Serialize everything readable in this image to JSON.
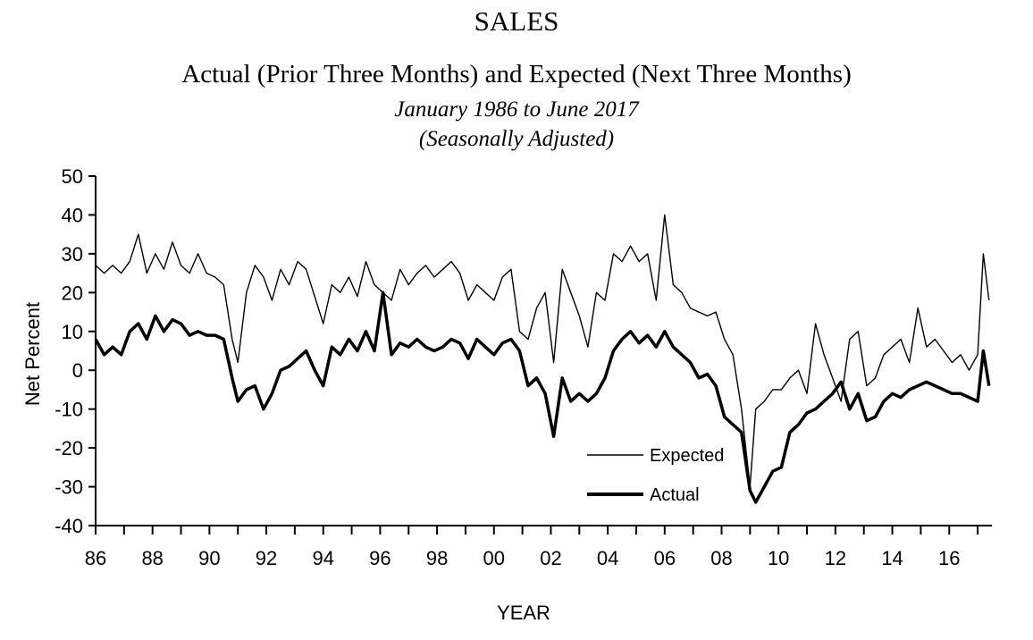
{
  "chart_data": {
    "type": "line",
    "title": "SALES",
    "subtitle": "Actual (Prior Three Months) and Expected (Next Three Months)",
    "date_range": "January 1986 to June 2017",
    "adjustment": "(Seasonally Adjusted)",
    "xlabel": "YEAR",
    "ylabel": "Net Percent",
    "xlim": [
      1986,
      2017.5
    ],
    "ylim": [
      -40,
      50
    ],
    "y_ticks": [
      "50",
      "40",
      "30",
      "20",
      "10",
      "0",
      "-10",
      "-20",
      "-30",
      "-40"
    ],
    "x_ticks": [
      "86",
      "88",
      "90",
      "92",
      "94",
      "96",
      "98",
      "00",
      "02",
      "04",
      "06",
      "08",
      "10",
      "12",
      "14",
      "16"
    ],
    "grid": false,
    "legend": {
      "placement": "lower-center",
      "entries": [
        "Expected",
        "Actual"
      ]
    },
    "series": [
      {
        "name": "Expected",
        "style": "thin",
        "x": [
          1986.0,
          1986.3,
          1986.6,
          1986.9,
          1987.2,
          1987.5,
          1987.8,
          1988.1,
          1988.4,
          1988.7,
          1989.0,
          1989.3,
          1989.6,
          1989.9,
          1990.2,
          1990.5,
          1990.8,
          1991.0,
          1991.3,
          1991.6,
          1991.9,
          1992.2,
          1992.5,
          1992.8,
          1993.1,
          1993.4,
          1993.7,
          1994.0,
          1994.3,
          1994.6,
          1994.9,
          1995.2,
          1995.5,
          1995.8,
          1996.1,
          1996.4,
          1996.7,
          1997.0,
          1997.3,
          1997.6,
          1997.9,
          1998.2,
          1998.5,
          1998.8,
          1999.1,
          1999.4,
          1999.7,
          2000.0,
          2000.3,
          2000.6,
          2000.9,
          2001.2,
          2001.5,
          2001.8,
          2002.1,
          2002.4,
          2002.7,
          2003.0,
          2003.3,
          2003.6,
          2003.9,
          2004.2,
          2004.5,
          2004.8,
          2005.1,
          2005.4,
          2005.7,
          2006.0,
          2006.3,
          2006.6,
          2006.9,
          2007.2,
          2007.5,
          2007.8,
          2008.1,
          2008.4,
          2008.7,
          2009.0,
          2009.2,
          2009.5,
          2009.8,
          2010.1,
          2010.4,
          2010.7,
          2011.0,
          2011.3,
          2011.6,
          2011.9,
          2012.2,
          2012.5,
          2012.8,
          2013.1,
          2013.4,
          2013.7,
          2014.0,
          2014.3,
          2014.6,
          2014.9,
          2015.2,
          2015.5,
          2015.8,
          2016.1,
          2016.4,
          2016.7,
          2017.0,
          2017.2,
          2017.4
        ],
        "values": [
          27,
          25,
          27,
          25,
          28,
          35,
          25,
          30,
          26,
          33,
          27,
          25,
          30,
          25,
          24,
          22,
          8,
          2,
          20,
          27,
          24,
          18,
          26,
          22,
          28,
          26,
          19,
          12,
          22,
          20,
          24,
          19,
          28,
          22,
          20,
          18,
          26,
          22,
          25,
          27,
          24,
          26,
          28,
          25,
          18,
          22,
          20,
          18,
          24,
          26,
          10,
          8,
          16,
          20,
          2,
          26,
          20,
          14,
          6,
          20,
          18,
          30,
          28,
          32,
          28,
          30,
          18,
          40,
          22,
          20,
          16,
          15,
          14,
          15,
          8,
          4,
          -10,
          -30,
          -10,
          -8,
          -5,
          -5,
          -2,
          0,
          -6,
          12,
          4,
          -2,
          -8,
          8,
          10,
          -4,
          -2,
          4,
          6,
          8,
          2,
          16,
          6,
          8,
          5,
          2,
          4,
          0,
          4,
          30,
          18
        ]
      },
      {
        "name": "Actual",
        "style": "thick",
        "x": [
          1986.0,
          1986.3,
          1986.6,
          1986.9,
          1987.2,
          1987.5,
          1987.8,
          1988.1,
          1988.4,
          1988.7,
          1989.0,
          1989.3,
          1989.6,
          1989.9,
          1990.2,
          1990.5,
          1990.8,
          1991.0,
          1991.3,
          1991.6,
          1991.9,
          1992.2,
          1992.5,
          1992.8,
          1993.1,
          1993.4,
          1993.7,
          1994.0,
          1994.3,
          1994.6,
          1994.9,
          1995.2,
          1995.5,
          1995.8,
          1996.1,
          1996.4,
          1996.7,
          1997.0,
          1997.3,
          1997.6,
          1997.9,
          1998.2,
          1998.5,
          1998.8,
          1999.1,
          1999.4,
          1999.7,
          2000.0,
          2000.3,
          2000.6,
          2000.9,
          2001.2,
          2001.5,
          2001.8,
          2002.1,
          2002.4,
          2002.7,
          2003.0,
          2003.3,
          2003.6,
          2003.9,
          2004.2,
          2004.5,
          2004.8,
          2005.1,
          2005.4,
          2005.7,
          2006.0,
          2006.3,
          2006.6,
          2006.9,
          2007.2,
          2007.5,
          2007.8,
          2008.1,
          2008.4,
          2008.7,
          2009.0,
          2009.2,
          2009.5,
          2009.8,
          2010.1,
          2010.4,
          2010.7,
          2011.0,
          2011.3,
          2011.6,
          2011.9,
          2012.2,
          2012.5,
          2012.8,
          2013.1,
          2013.4,
          2013.7,
          2014.0,
          2014.3,
          2014.6,
          2014.9,
          2015.2,
          2015.5,
          2015.8,
          2016.1,
          2016.4,
          2016.7,
          2017.0,
          2017.2,
          2017.4
        ],
        "values": [
          8,
          4,
          6,
          4,
          10,
          12,
          8,
          14,
          10,
          13,
          12,
          9,
          10,
          9,
          9,
          8,
          -2,
          -8,
          -5,
          -4,
          -10,
          -6,
          0,
          1,
          3,
          5,
          0,
          -4,
          6,
          4,
          8,
          5,
          10,
          5,
          20,
          4,
          7,
          6,
          8,
          6,
          5,
          6,
          8,
          7,
          3,
          8,
          6,
          4,
          7,
          8,
          5,
          -4,
          -2,
          -6,
          -17,
          -2,
          -8,
          -6,
          -8,
          -6,
          -2,
          5,
          8,
          10,
          7,
          9,
          6,
          10,
          6,
          4,
          2,
          -2,
          -1,
          -4,
          -12,
          -14,
          -16,
          -31,
          -34,
          -30,
          -26,
          -25,
          -16,
          -14,
          -11,
          -10,
          -8,
          -6,
          -3,
          -10,
          -6,
          -13,
          -12,
          -8,
          -6,
          -7,
          -5,
          -4,
          -3,
          -4,
          -5,
          -6,
          -6,
          -7,
          -8,
          5,
          -4
        ]
      }
    ]
  }
}
